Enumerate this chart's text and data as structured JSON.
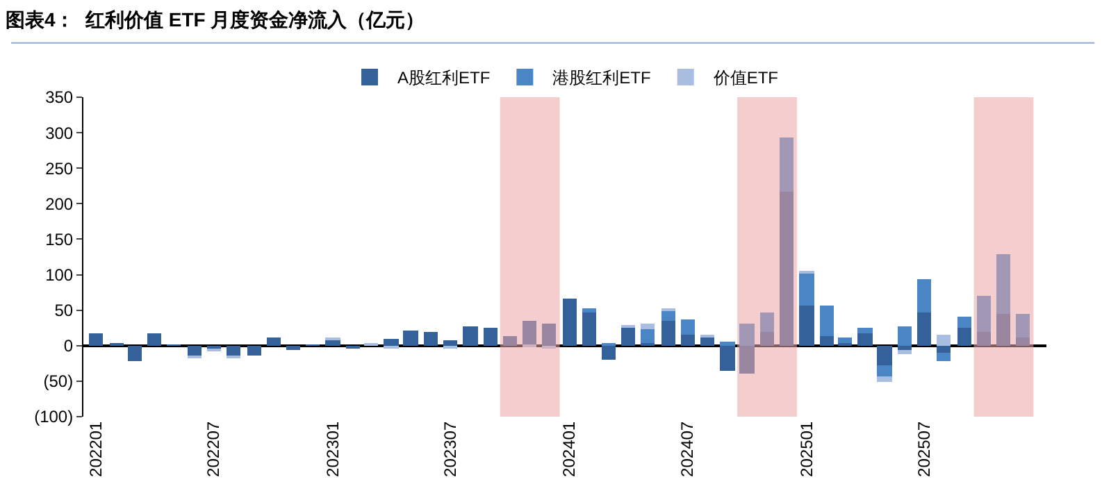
{
  "chart_data": {
    "type": "bar",
    "title": "图表4：  红利价值 ETF 月度资金净流入（亿元）",
    "x": [
      "2022-01",
      "2022-02",
      "2022-03",
      "2022-04",
      "2022-05",
      "2022-06",
      "2022-07",
      "2022-08",
      "2022-09",
      "2022-10",
      "2022-11",
      "2022-12",
      "2023-01",
      "2023-02",
      "2023-03",
      "2023-04",
      "2023-05",
      "2023-06",
      "2023-07",
      "2023-08",
      "2023-09",
      "2023-10",
      "2023-11",
      "2023-12",
      "2024-01",
      "2024-02",
      "2024-03",
      "2024-04",
      "2024-05",
      "2024-06",
      "2024-07",
      "2024-08",
      "2024-09",
      "2024-10",
      "2024-11",
      "2024-12",
      "2025-01",
      "2025-02",
      "2025-03",
      "2025-04",
      "2025-05",
      "2025-06",
      "2025-07",
      "2025-08",
      "2025-09",
      "2025-10",
      "2025-11",
      "2025-12"
    ],
    "stacked": true,
    "series": [
      {
        "name": "A股红利ETF",
        "color": "#35619a",
        "values": [
          17,
          2,
          -22,
          17,
          1,
          -14,
          -6,
          -15,
          -13,
          12,
          -6,
          1,
          8,
          -4,
          0,
          10,
          22,
          20,
          8,
          28,
          26,
          14,
          35,
          31,
          67,
          47,
          -20,
          26,
          4,
          35,
          16,
          13,
          -35,
          -39,
          20,
          216,
          56,
          13,
          3,
          18,
          -28,
          -6,
          47,
          -10,
          26,
          19,
          44,
          12
        ]
      },
      {
        "name": "港股红利ETF",
        "color": "#4a86c5",
        "values": [
          0,
          0,
          0,
          0,
          0,
          0,
          0,
          0,
          0,
          0,
          0,
          0,
          0,
          0,
          0,
          0,
          0,
          0,
          0,
          0,
          0,
          0,
          0,
          0,
          0,
          6,
          3,
          0,
          19,
          13,
          20,
          0,
          5,
          31,
          27,
          78,
          45,
          44,
          8,
          8,
          -16,
          28,
          46,
          -11,
          14,
          52,
          85,
          32
        ]
      },
      {
        "name": "价值ETF",
        "color": "#a9bde0",
        "values": [
          0,
          0,
          0,
          0,
          0,
          -3,
          -2,
          -3,
          0,
          0,
          0,
          0,
          2,
          0,
          3,
          -4,
          0,
          0,
          -5,
          0,
          0,
          0,
          -3,
          -4,
          0,
          0,
          0,
          3,
          9,
          4,
          0,
          3,
          0,
          0,
          0,
          0,
          5,
          0,
          0,
          0,
          -7,
          -5,
          0,
          15,
          0,
          0,
          0,
          0
        ]
      }
    ],
    "ylim": [
      -100,
      350
    ],
    "yticks": [
      {
        "value": -100,
        "label": "(100)"
      },
      {
        "value": -50,
        "label": "(50)"
      },
      0,
      50,
      100,
      150,
      200,
      250,
      300,
      350
    ],
    "xlim": [
      "2021-12-12",
      "2026-01-06"
    ],
    "xticks": [
      {
        "value": "2022-01",
        "label": "202201"
      },
      {
        "value": "2022-07",
        "label": "202207"
      },
      {
        "value": "2023-01",
        "label": "202301"
      },
      {
        "value": "2023-07",
        "label": "202307"
      },
      {
        "value": "2024-01",
        "label": "202401"
      },
      {
        "value": "2024-07",
        "label": "202407"
      },
      {
        "value": "2025-01",
        "label": "202501"
      },
      {
        "value": "2025-07",
        "label": "202507"
      }
    ],
    "bands": [
      {
        "axis": "x",
        "from": "2023-09-16",
        "to": "2023-12-17",
        "color": "#eba5a8"
      },
      {
        "axis": "x",
        "from": "2024-09-16",
        "to": "2024-12-17",
        "color": "#eba5a8"
      },
      {
        "axis": "x",
        "from": "2025-09-16",
        "to": "2025-12-17",
        "color": "#eba5a8"
      }
    ],
    "legend": "top"
  }
}
